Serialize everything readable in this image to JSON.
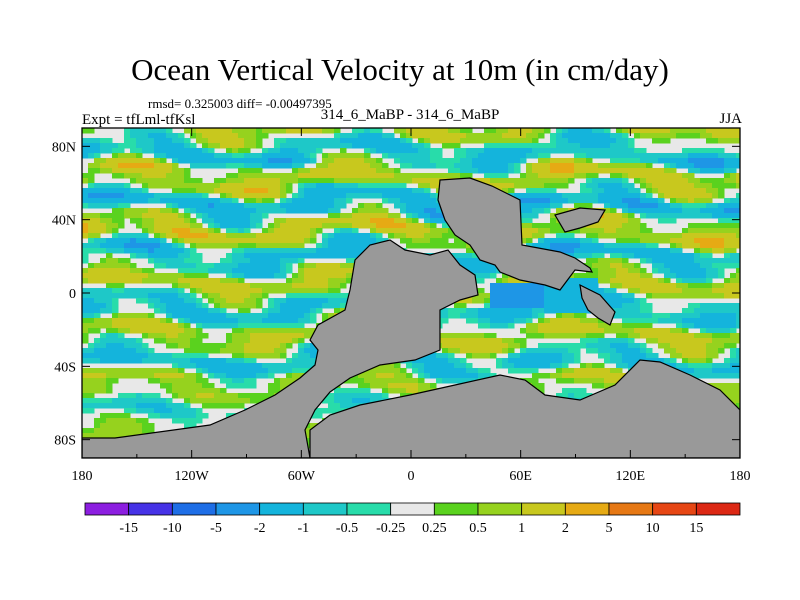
{
  "title": "Ocean Vertical Velocity at 10m (in cm/day)",
  "stats": "rmsd= 0.325003 diff= -0.00497395",
  "experiment": "Expt = tfLml-tfKsl",
  "cases": "314_6_MaBP - 314_6_MaBP",
  "season": "JJA",
  "colors": {
    "land": "#999999",
    "missing": "#e8e8e8",
    "ocean_near_zero": "#e8e8e8",
    "grid": "#000000"
  },
  "chart_data": {
    "type": "heatmap",
    "title": "Ocean Vertical Velocity at 10m (in cm/day)",
    "xlabel": "",
    "ylabel": "",
    "xlim": [
      -180,
      180
    ],
    "ylim": [
      -90,
      90
    ],
    "x_ticks": [
      -180,
      -120,
      -60,
      0,
      60,
      120,
      180
    ],
    "x_tick_labels": [
      "180",
      "120W",
      "60W",
      "0",
      "60E",
      "120E",
      "180"
    ],
    "y_ticks": [
      80,
      40,
      0,
      -40,
      -80
    ],
    "y_tick_labels": [
      "80N",
      "40N",
      "0",
      "40S",
      "80S"
    ],
    "colorbar": {
      "levels": [
        "-15",
        "-10",
        "-5",
        "-2",
        "-1",
        "-0.5",
        "-0.25",
        "0.25",
        "0.5",
        "1",
        "2",
        "5",
        "10",
        "15"
      ],
      "colors": [
        "#8c1ee0",
        "#4632e6",
        "#1e6ee6",
        "#1e96e6",
        "#14b4dc",
        "#1ec8c8",
        "#28dcaa",
        "#e8e8e8",
        "#5ad21e",
        "#96d21e",
        "#c8c81e",
        "#e6aa14",
        "#e67814",
        "#e64614",
        "#dc2814"
      ]
    },
    "features": {
      "max_positive_level": "2",
      "max_negative_level": "-5",
      "strong_negative_region": "equatorial Indian Ocean near 50E, 0",
      "land_masks": [
        "Americas",
        "Africa-Eurasia",
        "Antarctica",
        "Maritime continent"
      ]
    }
  }
}
